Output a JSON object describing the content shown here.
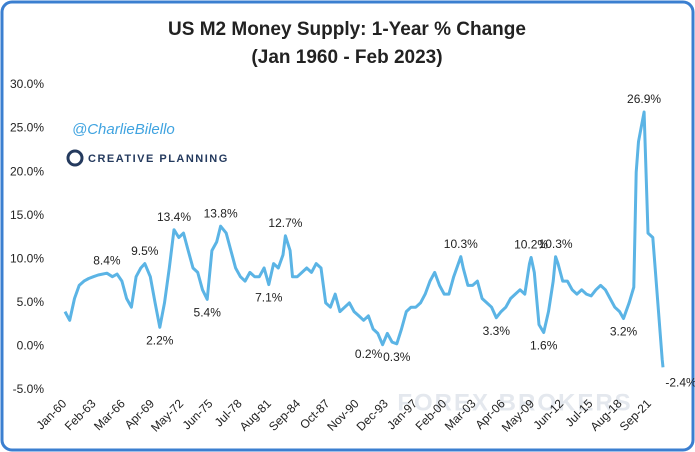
{
  "chart_data": {
    "type": "line",
    "title": "US M2 Money Supply: 1-Year % Change",
    "subtitle": "(Jan 1960 - Feb 2023)",
    "watermark": "@CharlieBilello",
    "brand": "CREATIVE PLANNING",
    "watermark2": "FOREX BROKERS",
    "color": "#5bb4e5",
    "x": [
      "1960-01",
      "1960-07",
      "1961-01",
      "1961-07",
      "1962-01",
      "1962-07",
      "1963-01",
      "1963-07",
      "1964-06",
      "1965-01",
      "1965-07",
      "1966-01",
      "1966-07",
      "1967-01",
      "1967-07",
      "1968-01",
      "1968-06",
      "1969-01",
      "1969-07",
      "1970-01",
      "1970-07",
      "1971-01",
      "1971-07",
      "1972-01",
      "1972-07",
      "1973-01",
      "1973-07",
      "1974-01",
      "1974-07",
      "1975-01",
      "1975-07",
      "1976-01",
      "1976-06",
      "1977-01",
      "1977-07",
      "1978-01",
      "1978-07",
      "1979-01",
      "1979-07",
      "1980-01",
      "1980-07",
      "1981-01",
      "1981-07",
      "1982-01",
      "1982-07",
      "1983-01",
      "1983-04",
      "1983-10",
      "1984-01",
      "1984-07",
      "1985-01",
      "1985-07",
      "1986-01",
      "1986-07",
      "1987-01",
      "1987-07",
      "1988-01",
      "1988-07",
      "1989-01",
      "1989-07",
      "1990-01",
      "1990-07",
      "1991-01",
      "1991-07",
      "1992-01",
      "1992-07",
      "1993-01",
      "1993-07",
      "1994-01",
      "1994-07",
      "1995-01",
      "1995-07",
      "1996-01",
      "1996-07",
      "1997-01",
      "1997-07",
      "1998-01",
      "1998-07",
      "1999-01",
      "1999-07",
      "2000-01",
      "2000-07",
      "2001-01",
      "2001-10",
      "2002-01",
      "2002-07",
      "2003-01",
      "2003-07",
      "2004-01",
      "2004-07",
      "2005-01",
      "2005-07",
      "2006-01",
      "2006-07",
      "2007-01",
      "2007-07",
      "2008-01",
      "2008-07",
      "2009-01",
      "2009-03",
      "2009-07",
      "2010-01",
      "2010-07",
      "2011-01",
      "2011-07",
      "2011-10",
      "2012-01",
      "2012-07",
      "2013-01",
      "2013-07",
      "2014-01",
      "2014-07",
      "2015-01",
      "2015-07",
      "2016-01",
      "2016-07",
      "2017-01",
      "2017-07",
      "2018-01",
      "2018-07",
      "2018-12",
      "2019-07",
      "2020-01",
      "2020-04",
      "2020-07",
      "2021-02",
      "2021-07",
      "2022-01",
      "2022-07",
      "2023-01",
      "2023-02"
    ],
    "values": [
      4.0,
      3.0,
      5.5,
      7.0,
      7.5,
      7.8,
      8.0,
      8.2,
      8.4,
      8.0,
      8.3,
      7.5,
      5.5,
      4.5,
      8.0,
      9.0,
      9.5,
      8.0,
      5.0,
      2.2,
      5.0,
      9.0,
      13.4,
      12.5,
      13.0,
      11.0,
      9.0,
      8.5,
      6.5,
      5.4,
      11.0,
      12.0,
      13.8,
      13.0,
      11.0,
      9.0,
      8.0,
      7.5,
      8.5,
      8.0,
      8.0,
      9.0,
      7.1,
      9.5,
      9.0,
      10.5,
      12.7,
      11.0,
      8.0,
      8.0,
      8.5,
      9.0,
      8.5,
      9.5,
      9.0,
      5.0,
      4.5,
      6.0,
      4.0,
      4.5,
      5.0,
      4.0,
      3.5,
      3.0,
      3.5,
      2.0,
      1.5,
      0.2,
      1.5,
      0.5,
      0.3,
      2.0,
      4.0,
      4.5,
      4.5,
      5.0,
      6.0,
      7.5,
      8.5,
      7.0,
      6.0,
      6.0,
      8.0,
      10.3,
      9.0,
      7.0,
      7.0,
      7.5,
      5.5,
      5.0,
      4.5,
      3.3,
      4.0,
      4.5,
      5.5,
      6.0,
      6.5,
      6.0,
      9.5,
      10.2,
      8.5,
      2.5,
      1.6,
      4.0,
      7.5,
      10.3,
      9.5,
      7.5,
      7.5,
      6.5,
      6.0,
      6.5,
      6.0,
      5.8,
      6.5,
      7.0,
      6.5,
      5.5,
      4.5,
      4.0,
      3.2,
      5.0,
      6.8,
      20.0,
      23.5,
      26.9,
      13.0,
      12.5,
      5.5,
      -1.5,
      -2.4
    ],
    "ylim": [
      -5,
      30
    ],
    "yticks": [
      {
        "value": -5,
        "label": "-5.0%"
      },
      {
        "value": 0,
        "label": "0.0%"
      },
      {
        "value": 5,
        "label": "5.0%"
      },
      {
        "value": 10,
        "label": "10.0%"
      },
      {
        "value": 15,
        "label": "15.0%"
      },
      {
        "value": 20,
        "label": "20.0%"
      },
      {
        "value": 25,
        "label": "25.0%"
      },
      {
        "value": 30,
        "label": "30.0%"
      }
    ],
    "xticks": [
      {
        "value": "1960-01",
        "label": "Jan-60"
      },
      {
        "value": "1963-02",
        "label": "Feb-63"
      },
      {
        "value": "1966-03",
        "label": "Mar-66"
      },
      {
        "value": "1969-04",
        "label": "Apr-69"
      },
      {
        "value": "1972-05",
        "label": "May-72"
      },
      {
        "value": "1975-06",
        "label": "Jun-75"
      },
      {
        "value": "1978-07",
        "label": "Jul-78"
      },
      {
        "value": "1981-08",
        "label": "Aug-81"
      },
      {
        "value": "1984-09",
        "label": "Sep-84"
      },
      {
        "value": "1987-10",
        "label": "Oct-87"
      },
      {
        "value": "1990-11",
        "label": "Nov-90"
      },
      {
        "value": "1993-12",
        "label": "Dec-93"
      },
      {
        "value": "1997-01",
        "label": "Jan-97"
      },
      {
        "value": "2000-02",
        "label": "Feb-00"
      },
      {
        "value": "2003-03",
        "label": "Mar-03"
      },
      {
        "value": "2006-04",
        "label": "Apr-06"
      },
      {
        "value": "2009-05",
        "label": "May-09"
      },
      {
        "value": "2012-06",
        "label": "Jun-12"
      },
      {
        "value": "2015-07",
        "label": "Jul-15"
      },
      {
        "value": "2018-08",
        "label": "Aug-18"
      },
      {
        "value": "2021-09",
        "label": "Sep-21"
      }
    ],
    "annotations": [
      {
        "text": "8.4%",
        "x": "1964-06",
        "y": 8.4
      },
      {
        "text": "9.5%",
        "x": "1968-06",
        "y": 9.5
      },
      {
        "text": "2.2%",
        "x": "1970-01",
        "y": 2.2
      },
      {
        "text": "13.4%",
        "x": "1971-07",
        "y": 13.4
      },
      {
        "text": "5.4%",
        "x": "1975-01",
        "y": 5.4
      },
      {
        "text": "13.8%",
        "x": "1976-06",
        "y": 13.8
      },
      {
        "text": "7.1%",
        "x": "1981-07",
        "y": 7.1
      },
      {
        "text": "12.7%",
        "x": "1983-04",
        "y": 12.7
      },
      {
        "text": "0.2%",
        "x": "1993-07",
        "y": 0.2
      },
      {
        "text": "0.3%",
        "x": "1995-01",
        "y": 0.3
      },
      {
        "text": "10.3%",
        "x": "2001-10",
        "y": 10.3
      },
      {
        "text": "3.3%",
        "x": "2005-07",
        "y": 3.3
      },
      {
        "text": "10.2%",
        "x": "2009-03",
        "y": 10.2
      },
      {
        "text": "1.6%",
        "x": "2010-07",
        "y": 1.6
      },
      {
        "text": "10.3%",
        "x": "2011-10",
        "y": 10.3
      },
      {
        "text": "3.2%",
        "x": "2018-12",
        "y": 3.2
      },
      {
        "text": "26.9%",
        "x": "2021-02",
        "y": 26.9
      },
      {
        "text": "-2.4%",
        "x": "2023-02",
        "y": -2.4
      }
    ]
  }
}
